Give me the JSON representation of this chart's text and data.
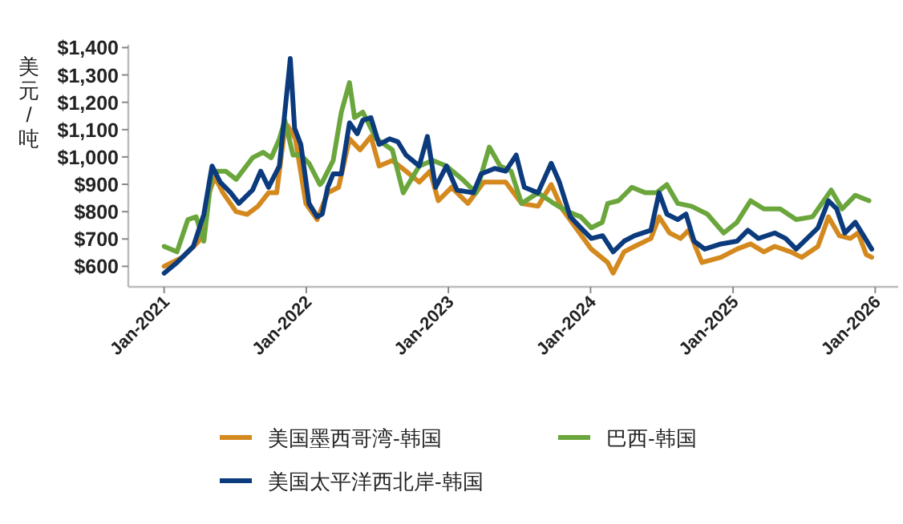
{
  "chart_data": {
    "type": "line",
    "ylabel": "美元/吨",
    "legend": "bottom",
    "grid": false,
    "line_style": "solid",
    "marker": "none",
    "xlim": [
      "2020-10-01",
      "2026-03-01"
    ],
    "ylim": [
      525,
      1410
    ],
    "xticks": [
      {
        "value": "2021-01-01",
        "label": "Jan-2021"
      },
      {
        "value": "2022-01-01",
        "label": "Jan-2022"
      },
      {
        "value": "2023-01-01",
        "label": "Jan-2023"
      },
      {
        "value": "2024-01-01",
        "label": "Jan-2024"
      },
      {
        "value": "2025-01-01",
        "label": "Jan-2025"
      },
      {
        "value": "2026-01-01",
        "label": "Jan-2026"
      }
    ],
    "yticks": [
      {
        "value": 600,
        "label": "$600"
      },
      {
        "value": 700,
        "label": "$700"
      },
      {
        "value": 800,
        "label": "$800"
      },
      {
        "value": 900,
        "label": "$900"
      },
      {
        "value": 1000,
        "label": "$1,000"
      },
      {
        "value": 1100,
        "label": "$1,100"
      },
      {
        "value": 1200,
        "label": "$1,200"
      },
      {
        "value": 1300,
        "label": "$1,300"
      },
      {
        "value": 1400,
        "label": "$1,400"
      }
    ],
    "series": [
      {
        "name": "美国墨西哥湾-韩国",
        "color": "#d4891e",
        "x": [
          "2021-01-01",
          "2021-02-17",
          "2021-03-31",
          "2021-04-27",
          "2021-05-11",
          "2021-06-01",
          "2021-07-05",
          "2021-08-02",
          "2021-08-30",
          "2021-09-26",
          "2021-10-17",
          "2021-11-07",
          "2021-11-14",
          "2021-12-04",
          "2021-12-31",
          "2022-01-29",
          "2022-02-25",
          "2022-03-25",
          "2022-04-22",
          "2022-05-19",
          "2022-06-16",
          "2022-07-07",
          "2022-08-10",
          "2022-09-14",
          "2022-10-18",
          "2022-11-15",
          "2022-12-06",
          "2023-01-09",
          "2023-02-20",
          "2023-04-02",
          "2023-05-28",
          "2023-07-08",
          "2023-08-19",
          "2023-09-22",
          "2023-10-20",
          "2023-11-24",
          "2024-01-03",
          "2024-02-14",
          "2024-02-28",
          "2024-03-27",
          "2024-04-23",
          "2024-06-04",
          "2024-06-25",
          "2024-07-22",
          "2024-08-19",
          "2024-09-09",
          "2024-10-13",
          "2024-12-01",
          "2025-01-11",
          "2025-02-15",
          "2025-03-21",
          "2025-04-18",
          "2025-05-29",
          "2025-06-26",
          "2025-08-07",
          "2025-09-03",
          "2025-10-01",
          "2025-10-29",
          "2025-11-18",
          "2025-12-09",
          "2025-12-23"
        ],
        "values": [
          600,
          633,
          692,
          869,
          928,
          869,
          800,
          790,
          820,
          869,
          869,
          1105,
          1115,
          1066,
          830,
          771,
          869,
          889,
          1066,
          1026,
          1075,
          967,
          987,
          948,
          908,
          948,
          840,
          889,
          830,
          908,
          908,
          830,
          820,
          899,
          810,
          741,
          663,
          614,
          575,
          653,
          673,
          702,
          781,
          722,
          702,
          732,
          614,
          633,
          663,
          682,
          653,
          673,
          653,
          633,
          673,
          781,
          712,
          702,
          722,
          643,
          633
        ]
      },
      {
        "name": "巴西-韩国",
        "color": "#6aa63c",
        "x": [
          "2021-01-01",
          "2021-02-03",
          "2021-03-03",
          "2021-03-24",
          "2021-04-13",
          "2021-05-04",
          "2021-06-08",
          "2021-07-05",
          "2021-08-16",
          "2021-09-12",
          "2021-10-03",
          "2021-10-24",
          "2021-11-07",
          "2021-11-28",
          "2021-12-18",
          "2022-01-08",
          "2022-02-05",
          "2022-02-11",
          "2022-03-11",
          "2022-04-01",
          "2022-04-22",
          "2022-05-05",
          "2022-05-26",
          "2022-06-30",
          "2022-08-10",
          "2022-09-07",
          "2022-10-18",
          "2022-11-22",
          "2022-12-27",
          "2023-02-06",
          "2023-03-13",
          "2023-04-16",
          "2023-05-14",
          "2023-06-11",
          "2023-07-08",
          "2023-08-19",
          "2023-09-29",
          "2023-11-03",
          "2023-12-07",
          "2024-01-03",
          "2024-01-31",
          "2024-02-14",
          "2024-03-13",
          "2024-04-16",
          "2024-05-21",
          "2024-06-18",
          "2024-07-15",
          "2024-08-12",
          "2024-09-16",
          "2024-10-27",
          "2024-12-08",
          "2025-01-11",
          "2025-02-15",
          "2025-03-21",
          "2025-05-02",
          "2025-06-12",
          "2025-07-24",
          "2025-09-10",
          "2025-10-08",
          "2025-11-11",
          "2025-12-16"
        ],
        "values": [
          673,
          653,
          771,
          781,
          692,
          948,
          948,
          918,
          997,
          1017,
          997,
          1066,
          1134,
          1007,
          1007,
          977,
          899,
          908,
          987,
          1164,
          1272,
          1144,
          1164,
          1066,
          1026,
          869,
          967,
          987,
          967,
          918,
          869,
          1036,
          967,
          948,
          830,
          869,
          830,
          800,
          781,
          741,
          761,
          830,
          840,
          889,
          869,
          869,
          899,
          830,
          820,
          791,
          722,
          761,
          840,
          810,
          810,
          771,
          781,
          879,
          810,
          860,
          840
        ]
      },
      {
        "name": "美国太平洋西北岸-韩国",
        "color": "#0b3b7d",
        "x": [
          "2021-01-01",
          "2021-02-03",
          "2021-03-17",
          "2021-04-13",
          "2021-05-04",
          "2021-05-25",
          "2021-06-21",
          "2021-07-12",
          "2021-08-16",
          "2021-09-06",
          "2021-09-26",
          "2021-10-24",
          "2021-11-07",
          "2021-11-21",
          "2021-12-02",
          "2021-12-18",
          "2022-01-08",
          "2022-01-29",
          "2022-02-11",
          "2022-02-25",
          "2022-03-11",
          "2022-04-01",
          "2022-04-22",
          "2022-05-12",
          "2022-05-26",
          "2022-06-16",
          "2022-07-07",
          "2022-08-03",
          "2022-08-24",
          "2022-09-14",
          "2022-10-18",
          "2022-11-08",
          "2022-11-29",
          "2022-12-27",
          "2023-01-23",
          "2023-03-06",
          "2023-03-26",
          "2023-04-30",
          "2023-05-28",
          "2023-06-24",
          "2023-07-15",
          "2023-08-19",
          "2023-09-22",
          "2023-10-13",
          "2023-11-10",
          "2023-12-07",
          "2024-01-03",
          "2024-02-01",
          "2024-02-28",
          "2024-03-27",
          "2024-04-23",
          "2024-06-04",
          "2024-06-25",
          "2024-07-15",
          "2024-08-12",
          "2024-09-02",
          "2024-09-23",
          "2024-10-20",
          "2024-12-01",
          "2025-01-11",
          "2025-02-08",
          "2025-03-07",
          "2025-04-18",
          "2025-05-16",
          "2025-06-12",
          "2025-07-10",
          "2025-08-07",
          "2025-09-03",
          "2025-09-24",
          "2025-10-15",
          "2025-11-11",
          "2025-12-02",
          "2025-12-23"
        ],
        "values": [
          575,
          614,
          673,
          790,
          967,
          908,
          869,
          830,
          879,
          948,
          889,
          967,
          1164,
          1360,
          1105,
          1046,
          830,
          781,
          791,
          889,
          938,
          938,
          1125,
          1085,
          1134,
          1144,
          1046,
          1066,
          1056,
          1007,
          967,
          1075,
          889,
          967,
          879,
          869,
          938,
          958,
          948,
          1007,
          889,
          869,
          977,
          908,
          781,
          741,
          702,
          712,
          653,
          692,
          712,
          732,
          869,
          791,
          771,
          791,
          692,
          663,
          682,
          692,
          732,
          702,
          722,
          702,
          663,
          702,
          741,
          840,
          810,
          722,
          761,
          712,
          663
        ]
      }
    ]
  }
}
